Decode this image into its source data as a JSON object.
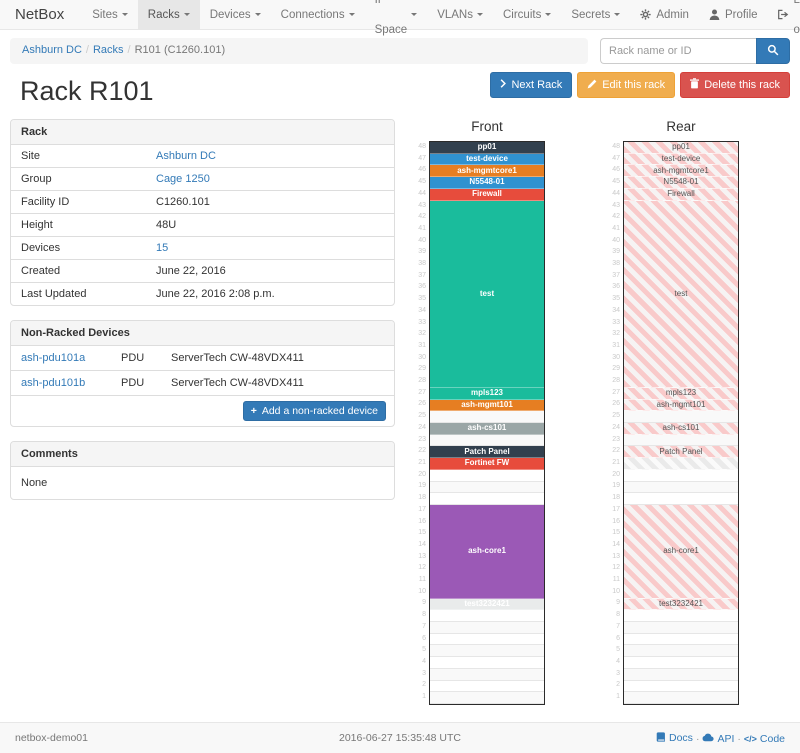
{
  "nav": {
    "brand": "NetBox",
    "items": [
      {
        "label": "Sites",
        "active": false
      },
      {
        "label": "Racks",
        "active": true
      },
      {
        "label": "Devices",
        "active": false
      },
      {
        "label": "Connections",
        "active": false
      },
      {
        "label": "IP Space",
        "active": false
      },
      {
        "label": "VLANs",
        "active": false
      },
      {
        "label": "Circuits",
        "active": false
      },
      {
        "label": "Secrets",
        "active": false
      }
    ],
    "right": [
      {
        "label": "Admin",
        "icon": "gear-icon"
      },
      {
        "label": "Profile",
        "icon": "person-icon"
      },
      {
        "label": "Log out",
        "icon": "logout-icon"
      }
    ]
  },
  "breadcrumb": {
    "items": [
      {
        "label": "Ashburn DC",
        "link": true
      },
      {
        "label": "Racks",
        "link": true
      },
      {
        "label": "R101 (C1260.101)",
        "link": false
      }
    ]
  },
  "search": {
    "placeholder": "Rack name or ID"
  },
  "page_title": "Rack R101",
  "actions": {
    "next_label": "Next Rack",
    "edit_label": "Edit this rack",
    "delete_label": "Delete this rack"
  },
  "rack_panel": {
    "title": "Rack",
    "rows": [
      {
        "label": "Site",
        "value": "Ashburn DC",
        "link": true
      },
      {
        "label": "Group",
        "value": "Cage 1250",
        "link": true
      },
      {
        "label": "Facility ID",
        "value": "C1260.101",
        "link": false
      },
      {
        "label": "Height",
        "value": "48U",
        "link": false
      },
      {
        "label": "Devices",
        "value": "15",
        "link": true
      },
      {
        "label": "Created",
        "value": "June 22, 2016",
        "link": false
      },
      {
        "label": "Last Updated",
        "value": "June 22, 2016 2:08 p.m.",
        "link": false
      }
    ]
  },
  "non_racked": {
    "title": "Non-Racked Devices",
    "rows": [
      {
        "name": "ash-pdu101a",
        "type": "PDU",
        "model": "ServerTech CW-48VDX411"
      },
      {
        "name": "ash-pdu101b",
        "type": "PDU",
        "model": "ServerTech CW-48VDX411"
      }
    ],
    "add_label": "Add a non-racked device"
  },
  "comments": {
    "title": "Comments",
    "body": "None"
  },
  "elevations": {
    "front": {
      "title": "Front",
      "units": 48,
      "items": [
        {
          "u": 48,
          "span": 1,
          "label": "pp01",
          "color": "#32404e"
        },
        {
          "u": 47,
          "span": 1,
          "label": "test-device",
          "color": "#3092d0"
        },
        {
          "u": 46,
          "span": 1,
          "label": "ash-mgmtcore1",
          "color": "#e67e22"
        },
        {
          "u": 45,
          "span": 1,
          "label": "N5548-01",
          "color": "#3092d0"
        },
        {
          "u": 44,
          "span": 1,
          "label": "Firewall",
          "color": "#e74c3c"
        },
        {
          "u": 43,
          "span": 16,
          "label": "test",
          "color": "#1abc9c"
        },
        {
          "u": 27,
          "span": 1,
          "label": "mpls123",
          "color": "#1abc9c"
        },
        {
          "u": 26,
          "span": 1,
          "label": "ash-mgmt101",
          "color": "#e67e22"
        },
        {
          "u": 24,
          "span": 1,
          "label": "ash-cs101",
          "color": "#9aa6a6"
        },
        {
          "u": 22,
          "span": 1,
          "label": "Patch Panel",
          "color": "#32404e"
        },
        {
          "u": 21,
          "span": 1,
          "label": "Fortinet FW",
          "color": "#e74c3c"
        },
        {
          "u": 17,
          "span": 8,
          "label": "ash-core1",
          "color": "#9b59b6"
        },
        {
          "u": 9,
          "span": 1,
          "label": "test3232421",
          "color": "#e9ebeb",
          "text_color": "#ffffff"
        }
      ]
    },
    "rear": {
      "title": "Rear",
      "units": 48,
      "items": [
        {
          "u": 48,
          "span": 1,
          "label": "pp01",
          "pattern": "pink"
        },
        {
          "u": 47,
          "span": 1,
          "label": "test-device",
          "pattern": "pink"
        },
        {
          "u": 46,
          "span": 1,
          "label": "ash-mgmtcore1",
          "pattern": "pink"
        },
        {
          "u": 45,
          "span": 1,
          "label": "N5548-01",
          "pattern": "pink"
        },
        {
          "u": 44,
          "span": 1,
          "label": "Firewall",
          "pattern": "pink"
        },
        {
          "u": 43,
          "span": 16,
          "label": "test",
          "pattern": "pink"
        },
        {
          "u": 27,
          "span": 1,
          "label": "mpls123",
          "pattern": "pink"
        },
        {
          "u": 26,
          "span": 1,
          "label": "ash-mgmt101",
          "pattern": "pink"
        },
        {
          "u": 24,
          "span": 1,
          "label": "ash-cs101",
          "pattern": "pink"
        },
        {
          "u": 22,
          "span": 1,
          "label": "Patch Panel",
          "pattern": "pink"
        },
        {
          "u": 21,
          "span": 1,
          "label": "",
          "pattern": "grey"
        },
        {
          "u": 17,
          "span": 8,
          "label": "ash-core1",
          "pattern": "pink"
        },
        {
          "u": 9,
          "span": 1,
          "label": "test3232421",
          "pattern": "pink"
        }
      ]
    }
  },
  "footer": {
    "host": "netbox-demo01",
    "timestamp": "2016-06-27 15:35:48 UTC",
    "links": [
      {
        "label": "Docs",
        "icon": "book-icon"
      },
      {
        "label": "API",
        "icon": "cloud-icon"
      },
      {
        "label": "Code",
        "icon": "code-icon"
      }
    ]
  },
  "colors": {
    "accent_blue": "#337ab7",
    "warning_orange": "#f0ad4e",
    "danger_red": "#d9534f",
    "rear_stripe_pink": "#f9caca",
    "rear_stripe_grey": "#eaeaea"
  }
}
